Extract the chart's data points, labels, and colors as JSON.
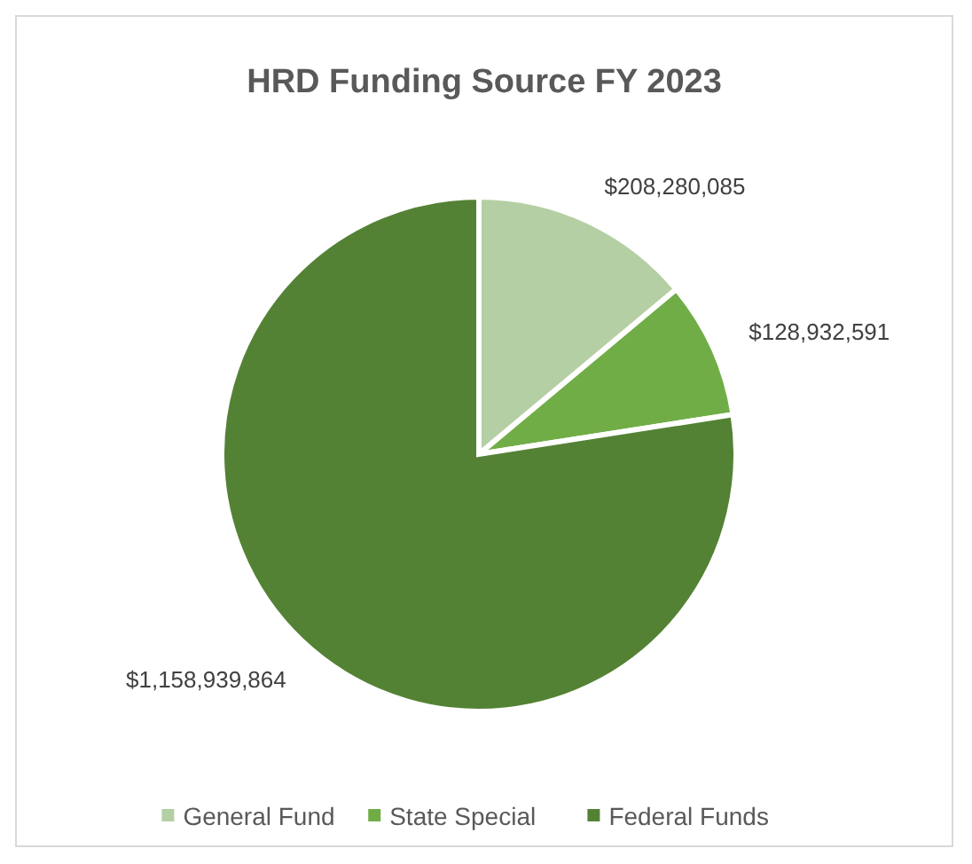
{
  "chart_data": {
    "type": "pie",
    "title": "HRD Funding Source FY 2023",
    "categories": [
      "General Fund",
      "State Special",
      "Federal Funds"
    ],
    "values": [
      208280085,
      128932591,
      1158939864
    ],
    "colors": [
      "#b4cfa3",
      "#70ad47",
      "#548235"
    ],
    "value_labels": [
      "$208,280,085",
      "$128,932,591",
      "$1,158,939,864"
    ],
    "legend": "bottom"
  }
}
